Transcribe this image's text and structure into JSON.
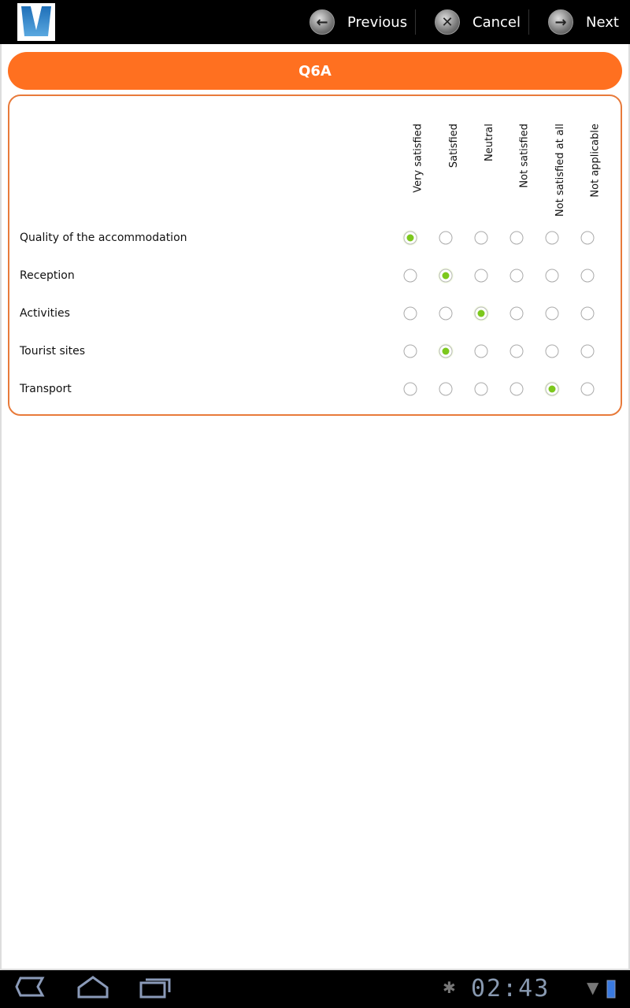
{
  "toolbar": {
    "previous": "Previous",
    "cancel": "Cancel",
    "next": "Next",
    "logo_letter": "V"
  },
  "question": {
    "title": "Q6A",
    "columns": [
      "Very satisfied",
      "Satisfied",
      "Neutral",
      "Not satisfied",
      "Not satisfied at all",
      "Not applicable"
    ],
    "rows": [
      {
        "label": "Quality of the accommodation",
        "selected": 0
      },
      {
        "label": "Reception",
        "selected": 1
      },
      {
        "label": "Activities",
        "selected": 2
      },
      {
        "label": "Tourist sites",
        "selected": 1
      },
      {
        "label": "Transport",
        "selected": 4
      }
    ]
  },
  "status": {
    "time": "02:43"
  },
  "colors": {
    "accent": "#ff7020",
    "selected": "#7cc81c"
  },
  "icons": {
    "previous": "arrow-left-icon",
    "cancel": "close-icon",
    "next": "arrow-right-icon"
  }
}
